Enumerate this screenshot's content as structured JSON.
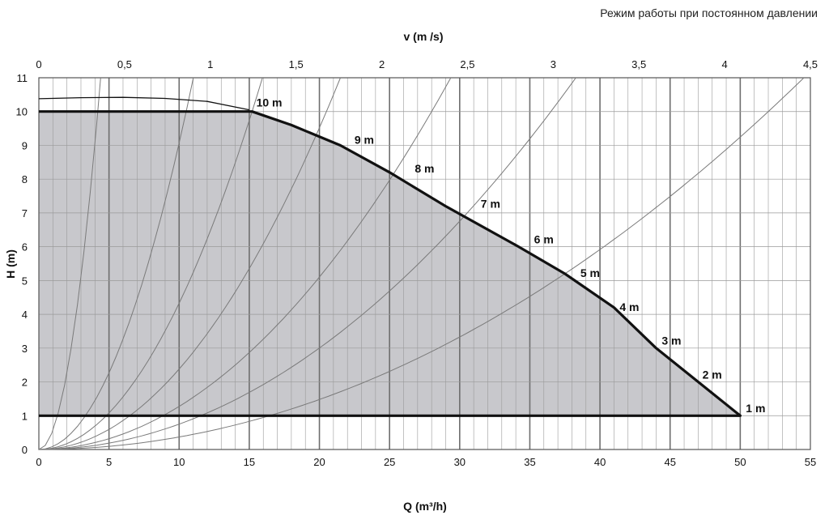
{
  "header_note": "Режим работы при постоянном давлении",
  "chart_data": {
    "type": "line",
    "xlabel": "Q (m³/h)",
    "ylabel": "H (m)",
    "x2label": "v (m /s)",
    "xlim": [
      0,
      55
    ],
    "ylim": [
      0,
      11
    ],
    "x2lim": [
      0,
      4.5
    ],
    "x_ticks": [
      "0",
      "5",
      "10",
      "15",
      "20",
      "25",
      "30",
      "35",
      "40",
      "45",
      "50",
      "55"
    ],
    "y_ticks": [
      "0",
      "1",
      "2",
      "3",
      "4",
      "5",
      "6",
      "7",
      "8",
      "9",
      "10",
      "11"
    ],
    "x2_ticks": [
      "0",
      "0,5",
      "1",
      "1,5",
      "2",
      "2,5",
      "3",
      "3,5",
      "4",
      "4,5"
    ],
    "grid": true,
    "fill_color": "#c8c8cc",
    "series": [
      {
        "role": "max-curve",
        "x": [
          0,
          3,
          6,
          9,
          12,
          15
        ],
        "y": [
          10.38,
          10.41,
          10.42,
          10.39,
          10.3,
          10.05
        ]
      },
      {
        "role": "operating-envelope",
        "x": [
          0,
          15.2,
          18,
          21.5,
          25,
          29,
          34.2,
          37.5,
          41,
          44,
          47,
          50,
          0
        ],
        "y": [
          10,
          10,
          9.6,
          9.0,
          8.2,
          7.2,
          6.0,
          5.2,
          4.2,
          3.0,
          2.0,
          1,
          1
        ]
      },
      {
        "role": "system-curve",
        "q_at_h10": 4.2
      },
      {
        "role": "system-curve",
        "q_at_h10": 10.5
      },
      {
        "role": "system-curve",
        "q_at_h10": 15.2
      },
      {
        "role": "system-curve",
        "q_at_h10": 20.5
      },
      {
        "role": "system-curve",
        "q_at_h10": 28.0
      },
      {
        "role": "system-curve",
        "q_at_h10": 36.5
      },
      {
        "role": "system-curve",
        "q_at_h10": 52.0
      }
    ],
    "annotations": [
      {
        "text": "10 m",
        "x": 15.5,
        "y": 10.15
      },
      {
        "text": "9 m",
        "x": 22.5,
        "y": 9.05
      },
      {
        "text": "8 m",
        "x": 26.8,
        "y": 8.2
      },
      {
        "text": "7 m",
        "x": 31.5,
        "y": 7.15
      },
      {
        "text": "6 m",
        "x": 35.3,
        "y": 6.1
      },
      {
        "text": "5 m",
        "x": 38.6,
        "y": 5.1
      },
      {
        "text": "4 m",
        "x": 41.4,
        "y": 4.1
      },
      {
        "text": "3 m",
        "x": 44.4,
        "y": 3.1
      },
      {
        "text": "2 m",
        "x": 47.3,
        "y": 2.1
      },
      {
        "text": "1 m",
        "x": 50.4,
        "y": 1.1
      }
    ]
  }
}
